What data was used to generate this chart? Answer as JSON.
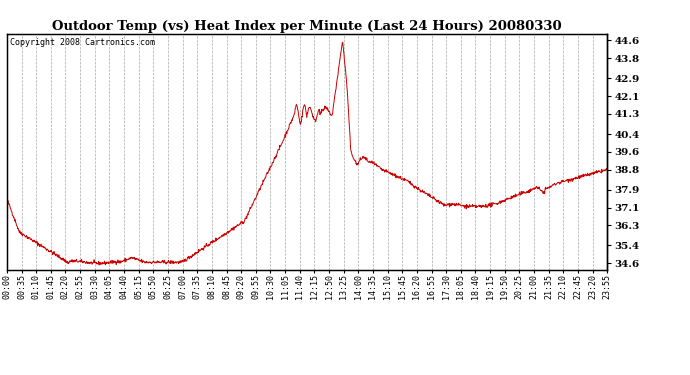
{
  "title": "Outdoor Temp (vs) Heat Index per Minute (Last 24 Hours) 20080330",
  "copyright": "Copyright 2008 Cartronics.com",
  "line_color": "#cc0000",
  "bg_color": "#ffffff",
  "plot_bg_color": "#ffffff",
  "grid_color": "#aaaaaa",
  "yticks": [
    34.6,
    35.4,
    36.3,
    37.1,
    37.9,
    38.8,
    39.6,
    40.4,
    41.3,
    42.1,
    42.9,
    43.8,
    44.6
  ],
  "ylim": [
    34.3,
    44.9
  ],
  "xtick_labels": [
    "00:00",
    "00:35",
    "01:10",
    "01:45",
    "02:20",
    "02:55",
    "03:30",
    "04:05",
    "04:40",
    "05:15",
    "05:50",
    "06:25",
    "07:00",
    "07:35",
    "08:10",
    "08:45",
    "09:20",
    "09:55",
    "10:30",
    "11:05",
    "11:40",
    "12:15",
    "12:50",
    "13:25",
    "14:00",
    "14:35",
    "15:10",
    "15:45",
    "16:20",
    "16:55",
    "17:30",
    "18:05",
    "18:40",
    "19:15",
    "19:50",
    "20:25",
    "21:00",
    "21:35",
    "22:10",
    "22:45",
    "23:20",
    "23:55"
  ]
}
